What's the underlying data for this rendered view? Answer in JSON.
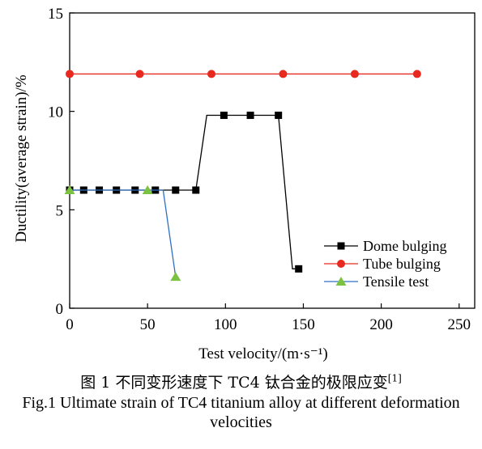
{
  "chart_data": {
    "type": "line",
    "xlabel": "Test velocity/(m·s⁻¹)",
    "ylabel": "Ductility(average strain)/%",
    "xlim": [
      0,
      260
    ],
    "ylim": [
      0,
      15
    ],
    "xticks": [
      0,
      50,
      100,
      150,
      200,
      250
    ],
    "yticks": [
      0,
      5,
      10,
      15
    ],
    "xtick_labels": [
      "0",
      "50",
      "100",
      "150",
      "200",
      "250"
    ],
    "ytick_labels": [
      "0",
      "5",
      "10",
      "15"
    ],
    "grid": false,
    "legend_position": "lower-right",
    "series": [
      {
        "name": "Dome bulging",
        "color": "#000000",
        "marker": "square",
        "x": [
          0,
          9,
          19,
          30,
          42,
          55,
          68,
          81,
          88,
          99,
          116,
          134,
          143,
          147
        ],
        "y": [
          6.0,
          6.0,
          6.0,
          6.0,
          6.0,
          6.0,
          6.0,
          6.0,
          9.8,
          9.8,
          9.8,
          9.8,
          2.0,
          2.0
        ],
        "marker_indices": [
          0,
          1,
          2,
          3,
          4,
          5,
          6,
          7,
          9,
          10,
          11,
          13
        ]
      },
      {
        "name": "Tube bulging",
        "color": "#e8291f",
        "marker": "circle",
        "x": [
          0,
          45,
          91,
          137,
          183,
          223
        ],
        "y": [
          11.9,
          11.9,
          11.9,
          11.9,
          11.9,
          11.9
        ],
        "marker_indices": [
          0,
          1,
          2,
          3,
          4,
          5
        ]
      },
      {
        "name": "Tensile test",
        "color": "#2e6fc4",
        "marker": "triangle",
        "marker_color": "#7cc242",
        "x": [
          0,
          50,
          60,
          68
        ],
        "y": [
          6.0,
          6.0,
          6.0,
          1.6
        ],
        "marker_indices": [
          0,
          1,
          3
        ]
      }
    ]
  },
  "caption": {
    "zh": "图 1    不同变形速度下 TC4 钛合金的极限应变",
    "zh_ref": "[1]",
    "en": "Fig.1 Ultimate strain of TC4 titanium alloy at different deformation velocities"
  }
}
